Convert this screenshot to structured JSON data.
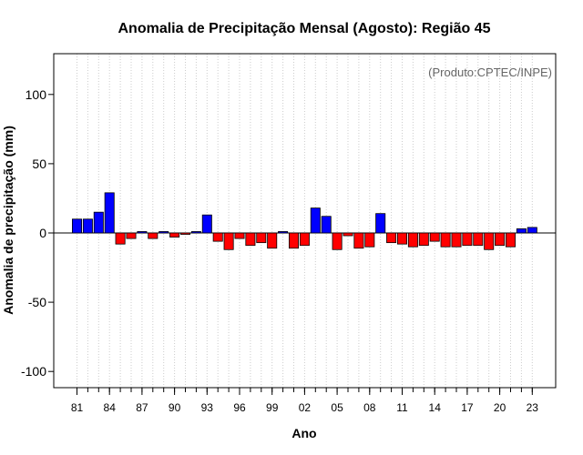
{
  "chart_data": {
    "type": "bar",
    "title": "Anomalia de Precipitação Mensal (Agosto): Região 45",
    "xlabel": "Ano",
    "ylabel": "Anomalia de precipitação (mm)",
    "credit": "(Produto:CPTEC/INPE)",
    "ylim": [
      -112,
      130
    ],
    "yticks": [
      -100,
      -50,
      0,
      50,
      100
    ],
    "xtick_labels": [
      "81",
      "84",
      "87",
      "90",
      "93",
      "96",
      "99",
      "02",
      "05",
      "08",
      "11",
      "14",
      "17",
      "20",
      "23"
    ],
    "xtick_step": 3,
    "grid": true,
    "categories": [
      "1981",
      "1982",
      "1983",
      "1984",
      "1985",
      "1986",
      "1987",
      "1988",
      "1989",
      "1990",
      "1991",
      "1992",
      "1993",
      "1994",
      "1995",
      "1996",
      "1997",
      "1998",
      "1999",
      "2000",
      "2001",
      "2002",
      "2003",
      "2004",
      "2005",
      "2006",
      "2007",
      "2008",
      "2009",
      "2010",
      "2011",
      "2012",
      "2013",
      "2014",
      "2015",
      "2016",
      "2017",
      "2018",
      "2019",
      "2020",
      "2021",
      "2022",
      "2023"
    ],
    "values": [
      10,
      10,
      15,
      29,
      -8,
      -4,
      1,
      -4,
      1,
      -3,
      -1,
      1,
      13,
      -6,
      -12,
      -4,
      -9,
      -7,
      -11,
      1,
      -11,
      -9,
      18,
      12,
      -12,
      -2,
      -11,
      -10,
      14,
      -7,
      -8,
      -10,
      -9,
      -6,
      -10,
      -10,
      -9,
      -9,
      -12,
      -9,
      -10,
      3,
      4
    ],
    "colors": {
      "positive": "#0000ff",
      "negative": "#ff0000",
      "zero_line": "#000000",
      "grid": "#cccccc"
    }
  }
}
